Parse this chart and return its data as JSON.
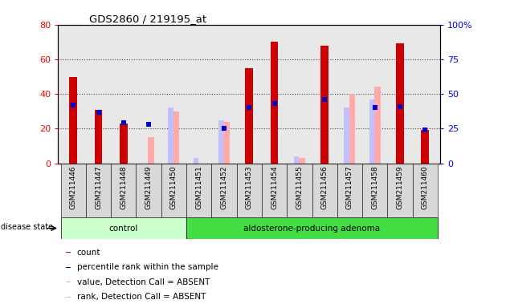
{
  "title": "GDS2860 / 219195_at",
  "samples": [
    "GSM211446",
    "GSM211447",
    "GSM211448",
    "GSM211449",
    "GSM211450",
    "GSM211451",
    "GSM211452",
    "GSM211453",
    "GSM211454",
    "GSM211455",
    "GSM211456",
    "GSM211457",
    "GSM211458",
    "GSM211459",
    "GSM211460"
  ],
  "count_values": [
    50,
    31,
    23,
    null,
    null,
    null,
    null,
    55,
    70,
    null,
    68,
    null,
    null,
    69,
    19
  ],
  "percentile_values": [
    42,
    37,
    29,
    28,
    null,
    null,
    25,
    40,
    43,
    null,
    46,
    null,
    40,
    41,
    24
  ],
  "absent_value_bars": [
    null,
    null,
    null,
    15,
    30,
    null,
    24,
    null,
    null,
    3,
    null,
    40,
    44,
    null,
    null
  ],
  "absent_rank_bars": [
    null,
    null,
    null,
    null,
    32,
    3,
    25,
    null,
    null,
    4,
    null,
    32,
    37,
    null,
    null
  ],
  "ylim_left": [
    0,
    80
  ],
  "ylim_right": [
    0,
    100
  ],
  "yticks_left": [
    0,
    20,
    40,
    60,
    80
  ],
  "ytick_labels_left": [
    "0",
    "20",
    "40",
    "60",
    "80"
  ],
  "yticks_right": [
    0,
    25,
    50,
    75,
    100
  ],
  "ytick_labels_right": [
    "0",
    "25",
    "50",
    "75",
    "100%"
  ],
  "count_color": "#cc0000",
  "percentile_color": "#0000cc",
  "absent_value_color": "#ffaaaa",
  "absent_rank_color": "#c0c0ff",
  "bg_color": "#e8e8e8",
  "plot_bg": "#ffffff",
  "control_light": "#ccffcc",
  "adenoma_green": "#44dd44",
  "n_control": 5,
  "n_samples": 15,
  "legend_items": [
    {
      "color": "#cc0000",
      "label": "count"
    },
    {
      "color": "#0000cc",
      "label": "percentile rank within the sample"
    },
    {
      "color": "#ffaaaa",
      "label": "value, Detection Call = ABSENT"
    },
    {
      "color": "#c0c0ff",
      "label": "rank, Detection Call = ABSENT"
    }
  ]
}
